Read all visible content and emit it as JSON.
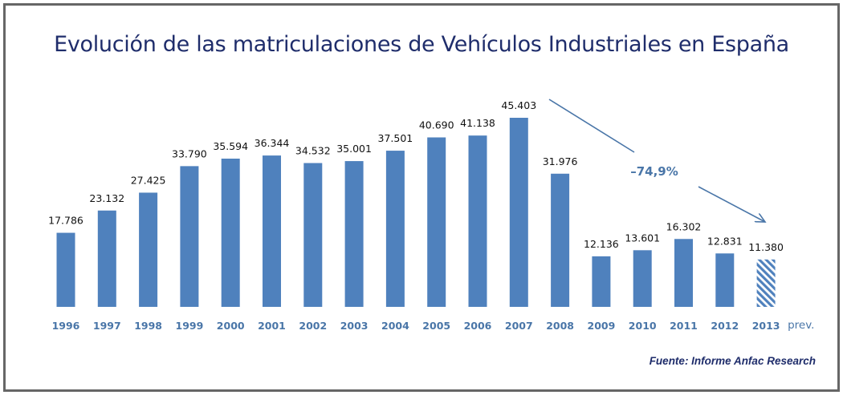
{
  "chart_data": {
    "type": "bar",
    "title": "Evolución de las matriculaciones de Vehículos Industriales en España",
    "categories": [
      "1996",
      "1997",
      "1998",
      "1999",
      "2000",
      "2001",
      "2002",
      "2003",
      "2004",
      "2005",
      "2006",
      "2007",
      "2008",
      "2009",
      "2010",
      "2011",
      "2012",
      "2013"
    ],
    "values": [
      17786,
      23132,
      27425,
      33790,
      35594,
      36344,
      34532,
      35001,
      37501,
      40690,
      41138,
      45403,
      31976,
      12136,
      13601,
      16302,
      12831,
      11380
    ],
    "value_labels": [
      "17.786",
      "23.132",
      "27.425",
      "33.790",
      "35.594",
      "36.344",
      "34.532",
      "35.001",
      "37.501",
      "40.690",
      "41.138",
      "45.403",
      "31.976",
      "12.136",
      "13.601",
      "16.302",
      "12.831",
      "11.380"
    ],
    "forecast_suffix": "prev.",
    "forecast_index": 17,
    "annotation": "–74,9%",
    "xlabel": "",
    "ylabel": "",
    "ylim": [
      0,
      46000
    ],
    "grid": false,
    "bar_color": "#4f81bd",
    "year_label_color": "#4a76a8"
  },
  "source": "Fuente: Informe Anfac Research"
}
